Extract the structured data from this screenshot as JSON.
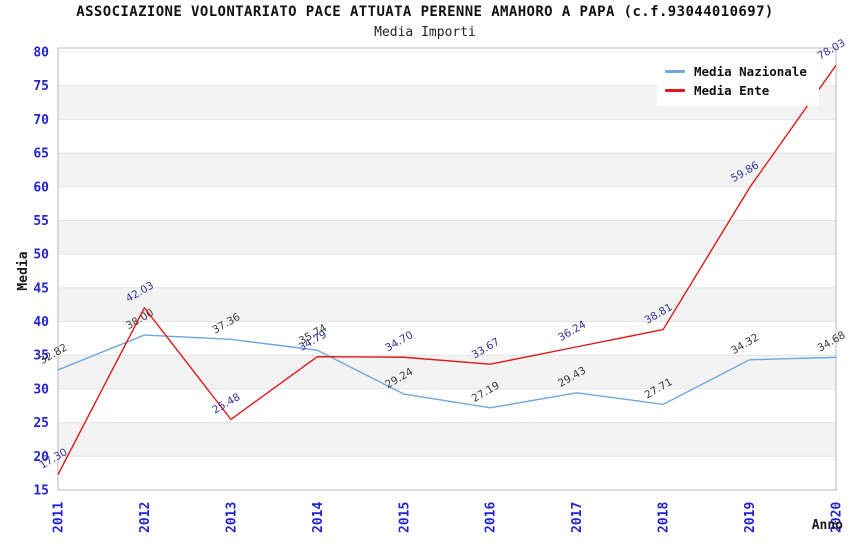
{
  "header": {
    "title": "ASSOCIAZIONE VOLONTARIATO PACE ATTUATA PERENNE AMAHORO A PAPA (c.f.93044010697)",
    "subtitle": "Media Importi"
  },
  "legend": {
    "position": "top-right",
    "items": [
      {
        "label": "Media Nazionale",
        "color": "#6FA8DC"
      },
      {
        "label": "Media Ente",
        "color": "#E01919"
      }
    ]
  },
  "chart_data": {
    "type": "line",
    "title": "ASSOCIAZIONE VOLONTARIATO PACE ATTUATA PERENNE AMAHORO A PAPA (c.f.93044010697)",
    "subtitle": "Media Importi",
    "xlabel": "Anno",
    "ylabel": "Media",
    "x": [
      2011,
      2012,
      2013,
      2014,
      2015,
      2016,
      2017,
      2018,
      2019,
      2020
    ],
    "series": [
      {
        "name": "Media Nazionale",
        "color": "#6FA8DC",
        "label_color": "#3b3b3b",
        "values": [
          32.82,
          38.0,
          37.36,
          35.74,
          29.24,
          27.19,
          29.43,
          27.71,
          34.32,
          34.68
        ],
        "labels": [
          "32.82",
          "38.00",
          "37.36",
          "35.74",
          "29.24",
          "27.19",
          "29.43",
          "27.71",
          "34.32",
          "34.68"
        ]
      },
      {
        "name": "Media Ente",
        "color": "#E01919",
        "label_color": "#33339B",
        "values": [
          17.3,
          42.03,
          25.48,
          34.79,
          34.7,
          33.67,
          36.24,
          38.81,
          59.86,
          78.03
        ],
        "labels": [
          "17.30",
          "42.03",
          "25.48",
          "34.79",
          "34.70",
          "33.67",
          "36.24",
          "38.81",
          "59.86",
          "78.03"
        ]
      }
    ],
    "ylim": [
      15,
      80
    ],
    "ytick_step": 5,
    "yticks": [
      15,
      20,
      25,
      30,
      35,
      40,
      45,
      50,
      55,
      60,
      65,
      70,
      75,
      80
    ],
    "grid": true,
    "legend_position": "top-right",
    "style": {
      "band_fill": "#f3f3f3",
      "grid_color": "#e4e4e4",
      "border_color": "#b8b8b8",
      "tick_color": "#2424CE",
      "axis_title_color": "#1a1a1a"
    }
  }
}
